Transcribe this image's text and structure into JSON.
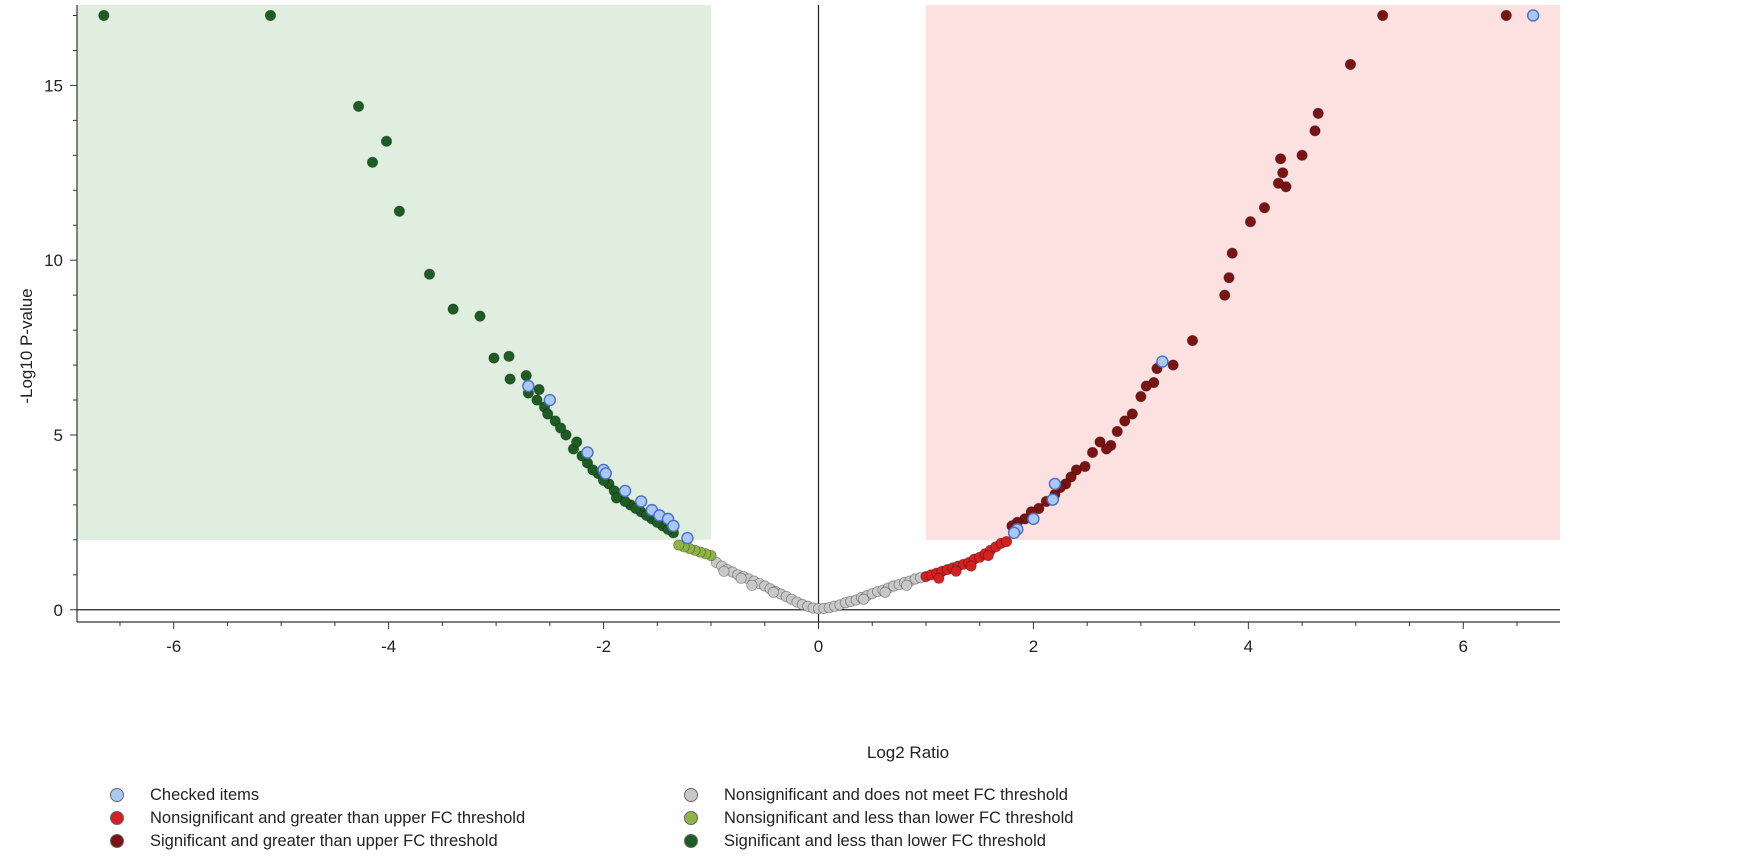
{
  "chart_data": {
    "type": "scatter",
    "title": "",
    "xlabel": "Log2 Ratio",
    "ylabel": "-Log10 P-value",
    "xlim": [
      -6.9,
      6.9
    ],
    "ylim": [
      -0.35,
      17.3
    ],
    "x_ticks": [
      -6,
      -4,
      -2,
      0,
      2,
      4,
      6
    ],
    "y_ticks": [
      0,
      5,
      10,
      15
    ],
    "grid": false,
    "legend_position": "bottom",
    "shaded_regions": [
      {
        "x": [
          -6.9,
          -1
        ],
        "y": [
          2,
          17.3
        ],
        "color": "#e0eedf"
      },
      {
        "x": [
          1,
          6.9
        ],
        "y": [
          2,
          17.3
        ],
        "color": "#fde0e0"
      }
    ],
    "series": [
      {
        "name": "Nonsignificant and does not meet FC threshold",
        "color": "#c8c8c8",
        "x": [
          -0.95,
          -0.9,
          -0.85,
          -0.8,
          -0.75,
          -0.7,
          -0.65,
          -0.6,
          -0.55,
          -0.5,
          -0.45,
          -0.4,
          -0.35,
          -0.3,
          -0.25,
          -0.2,
          -0.15,
          -0.1,
          -0.05,
          0.0,
          0.05,
          0.1,
          0.15,
          0.2,
          0.25,
          0.3,
          0.35,
          0.4,
          0.45,
          0.5,
          0.55,
          0.6,
          0.65,
          0.7,
          0.75,
          0.8,
          0.85,
          0.9,
          0.95,
          -0.88,
          -0.72,
          -0.62,
          -0.42,
          0.42,
          0.62,
          0.82
        ],
        "y": [
          1.35,
          1.25,
          1.15,
          1.08,
          1.0,
          0.95,
          0.88,
          0.82,
          0.75,
          0.68,
          0.6,
          0.52,
          0.45,
          0.38,
          0.3,
          0.22,
          0.15,
          0.1,
          0.05,
          0.03,
          0.04,
          0.06,
          0.1,
          0.14,
          0.2,
          0.24,
          0.28,
          0.35,
          0.4,
          0.46,
          0.52,
          0.56,
          0.62,
          0.68,
          0.72,
          0.78,
          0.82,
          0.88,
          0.92,
          1.1,
          0.9,
          0.7,
          0.5,
          0.3,
          0.5,
          0.7
        ]
      },
      {
        "name": "Nonsignificant and less than lower FC threshold",
        "color": "#8db545",
        "x": [
          -1.0,
          -1.05,
          -1.1,
          -1.15,
          -1.2,
          -1.25,
          -1.3
        ],
        "y": [
          1.55,
          1.6,
          1.65,
          1.7,
          1.75,
          1.8,
          1.85
        ]
      },
      {
        "name": "Significant and less than lower FC threshold",
        "color": "#1d5d24",
        "x": [
          -6.65,
          -5.1,
          -4.28,
          -4.02,
          -4.15,
          -3.9,
          -3.62,
          -3.4,
          -3.15,
          -3.02,
          -2.88,
          -2.72,
          -2.6,
          -2.55,
          -2.45,
          -2.35,
          -2.28,
          -2.15,
          -2.05,
          -1.95,
          -1.85,
          -1.75,
          -1.65,
          -1.55,
          -1.45,
          -1.35,
          -2.87,
          -2.7,
          -2.52,
          -2.4,
          -2.25,
          -2.1,
          -2.0,
          -1.9,
          -1.8,
          -1.7,
          -1.6,
          -1.5,
          -1.4,
          -2.62,
          -2.2,
          -1.88
        ],
        "y": [
          17.0,
          17.0,
          14.4,
          13.4,
          12.8,
          11.4,
          9.6,
          8.6,
          8.4,
          7.2,
          7.25,
          6.7,
          6.3,
          5.8,
          5.4,
          5.0,
          4.6,
          4.2,
          3.9,
          3.6,
          3.3,
          3.0,
          2.8,
          2.6,
          2.4,
          2.2,
          6.6,
          6.2,
          5.6,
          5.2,
          4.8,
          4.0,
          3.7,
          3.4,
          3.1,
          2.9,
          2.7,
          2.5,
          2.3,
          6.0,
          4.4,
          3.2
        ]
      },
      {
        "name": "Nonsignificant and greater than upper FC threshold",
        "color": "#d42020",
        "x": [
          1.0,
          1.05,
          1.1,
          1.15,
          1.2,
          1.25,
          1.3,
          1.35,
          1.4,
          1.45,
          1.5,
          1.55,
          1.6,
          1.65,
          1.7,
          1.75,
          1.12,
          1.28,
          1.42,
          1.58
        ],
        "y": [
          0.95,
          1.0,
          1.05,
          1.1,
          1.15,
          1.2,
          1.25,
          1.3,
          1.35,
          1.45,
          1.5,
          1.6,
          1.7,
          1.8,
          1.9,
          1.95,
          0.9,
          1.1,
          1.25,
          1.55
        ]
      },
      {
        "name": "Significant and greater than upper FC threshold",
        "color": "#7a1414",
        "x": [
          6.4,
          5.25,
          4.95,
          4.65,
          4.62,
          4.5,
          4.3,
          4.32,
          4.35,
          4.28,
          4.15,
          4.02,
          3.85,
          3.82,
          3.78,
          3.48,
          3.3,
          3.15,
          3.12,
          3.05,
          3.0,
          2.92,
          2.85,
          2.78,
          2.72,
          2.68,
          2.62,
          2.55,
          2.48,
          2.4,
          2.35,
          2.3,
          2.25,
          2.2,
          2.12,
          2.05,
          1.98,
          1.92,
          1.85,
          1.8
        ],
        "y": [
          17.0,
          17.0,
          15.6,
          14.2,
          13.7,
          13.0,
          12.9,
          12.5,
          12.1,
          12.2,
          11.5,
          11.1,
          10.2,
          9.5,
          9.0,
          7.7,
          7.0,
          6.9,
          6.5,
          6.4,
          6.1,
          5.6,
          5.4,
          5.1,
          4.7,
          4.6,
          4.8,
          4.5,
          4.1,
          4.0,
          3.8,
          3.6,
          3.5,
          3.3,
          3.1,
          2.9,
          2.8,
          2.6,
          2.5,
          2.4
        ]
      },
      {
        "name": "Checked items",
        "color": "#a9c8f2",
        "x": [
          -2.7,
          -2.5,
          -2.15,
          -2.0,
          -1.98,
          -1.8,
          -1.65,
          -1.55,
          -1.48,
          -1.4,
          -1.35,
          -1.22,
          6.65,
          3.2,
          2.2,
          2.18,
          2.0,
          1.85,
          1.82
        ],
        "y": [
          6.4,
          6.0,
          4.5,
          4.0,
          3.9,
          3.4,
          3.1,
          2.85,
          2.7,
          2.6,
          2.4,
          2.05,
          17.0,
          7.1,
          3.6,
          3.15,
          2.6,
          2.3,
          2.2
        ]
      }
    ]
  }
}
